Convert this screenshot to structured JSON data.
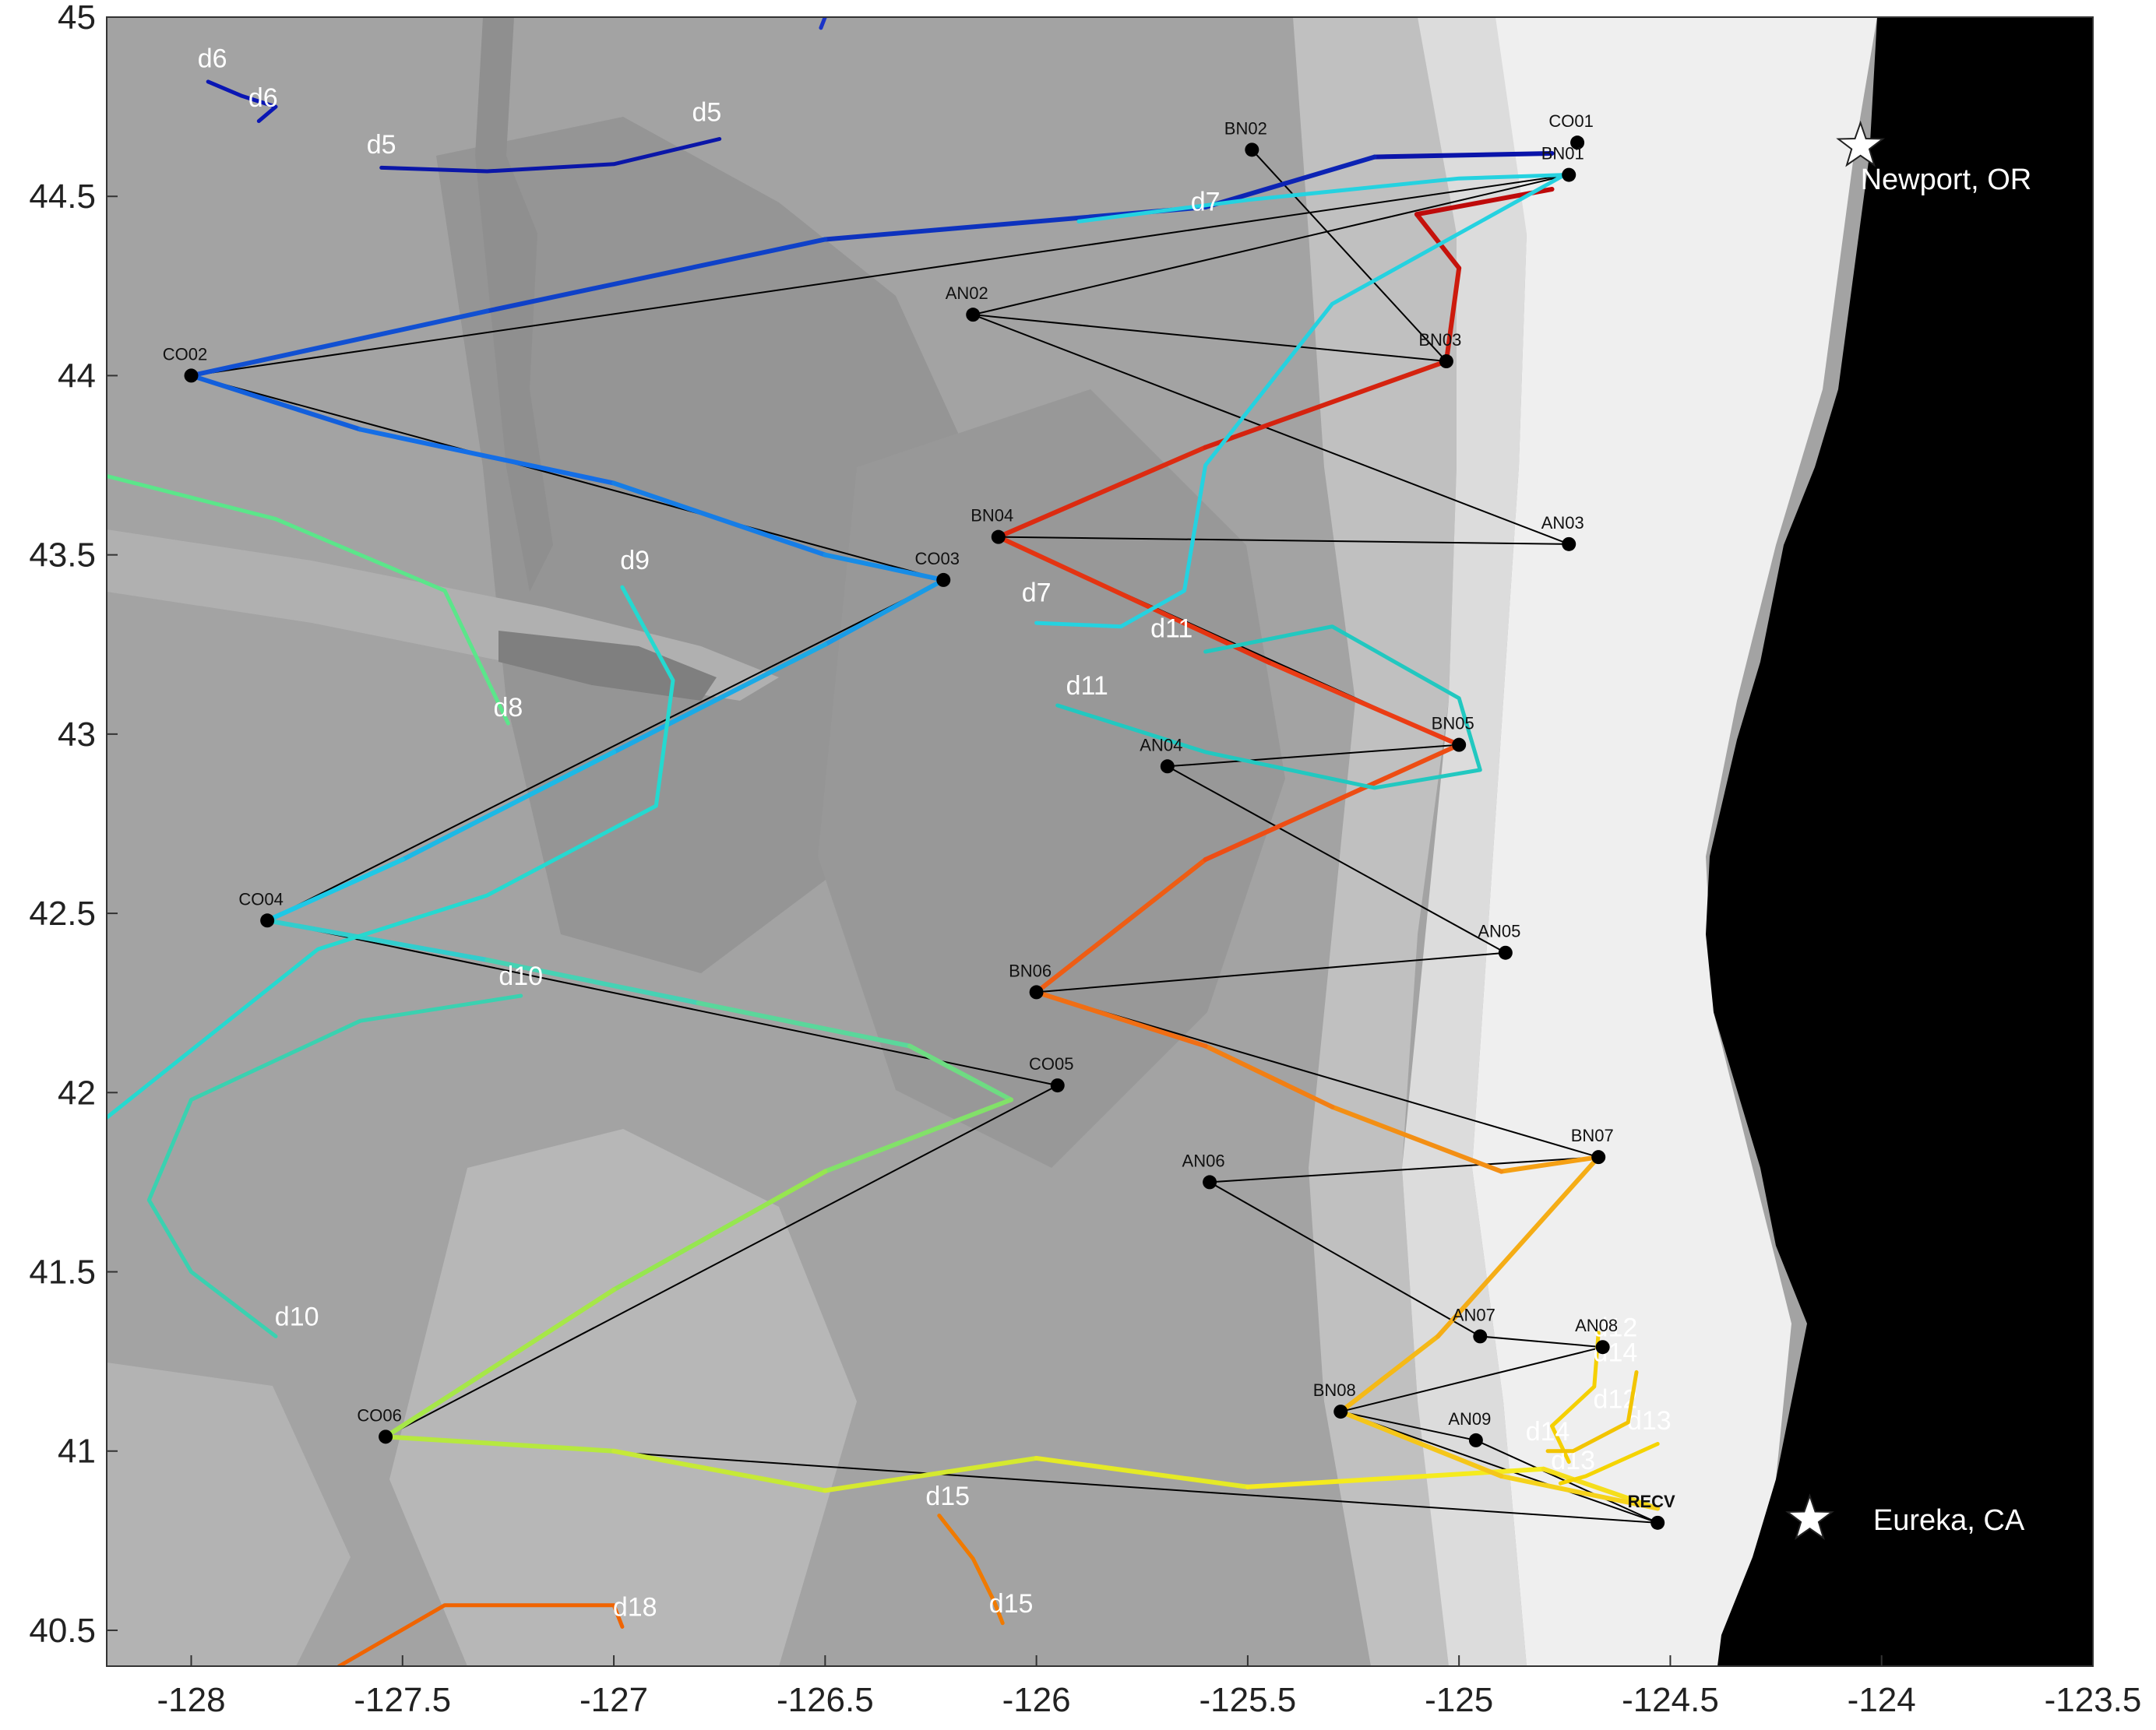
{
  "colors": {
    "ocean_deep": "#9e9e9e",
    "ocean_mid": "#aaaaaa",
    "ocean_slope": "#c2c2c2",
    "ocean_shelf": "#e0e0e0",
    "ocean_nearshore": "#f0f0f0",
    "land": "#000000",
    "ship_track": "#000000"
  },
  "chart_data": {
    "type": "map",
    "xlim": [
      -128.2,
      -123.5
    ],
    "ylim": [
      40.4,
      45
    ],
    "x_ticks": [
      {
        "value": -128,
        "label": "-128"
      },
      {
        "value": -127.5,
        "label": "-127.5"
      },
      {
        "value": -127,
        "label": "-127"
      },
      {
        "value": -126.5,
        "label": "-126.5"
      },
      {
        "value": -126,
        "label": "-126"
      },
      {
        "value": -125.5,
        "label": "-125.5"
      },
      {
        "value": -125,
        "label": "-125"
      },
      {
        "value": -124.5,
        "label": "-124.5"
      },
      {
        "value": -124,
        "label": "-124"
      },
      {
        "value": -123.5,
        "label": "-123.5"
      }
    ],
    "y_ticks": [
      {
        "value": 45,
        "label": "45"
      },
      {
        "value": 44.5,
        "label": "44.5"
      },
      {
        "value": 44,
        "label": "44"
      },
      {
        "value": 43.5,
        "label": "43.5"
      },
      {
        "value": 43,
        "label": "43"
      },
      {
        "value": 42.5,
        "label": "42.5"
      },
      {
        "value": 42,
        "label": "42"
      },
      {
        "value": 41.5,
        "label": "41.5"
      },
      {
        "value": 41,
        "label": "41"
      },
      {
        "value": 40.5,
        "label": "40.5"
      }
    ],
    "grid": false,
    "stations": [
      {
        "name": "CO01",
        "lon": -124.72,
        "lat": 44.65
      },
      {
        "name": "BN01",
        "lon": -124.74,
        "lat": 44.56
      },
      {
        "name": "BN02",
        "lon": -125.49,
        "lat": 44.63
      },
      {
        "name": "CO02",
        "lon": -128.0,
        "lat": 44.0
      },
      {
        "name": "AN02",
        "lon": -126.15,
        "lat": 44.17
      },
      {
        "name": "BN03",
        "lon": -125.03,
        "lat": 44.04
      },
      {
        "name": "AN03",
        "lon": -124.74,
        "lat": 43.53
      },
      {
        "name": "BN04",
        "lon": -126.09,
        "lat": 43.55
      },
      {
        "name": "CO03",
        "lon": -126.22,
        "lat": 43.43
      },
      {
        "name": "BN05",
        "lon": -125.0,
        "lat": 42.97
      },
      {
        "name": "AN04",
        "lon": -125.69,
        "lat": 42.91
      },
      {
        "name": "CO04",
        "lon": -127.82,
        "lat": 42.48
      },
      {
        "name": "AN05",
        "lon": -124.89,
        "lat": 42.39
      },
      {
        "name": "BN06",
        "lon": -126.0,
        "lat": 42.28
      },
      {
        "name": "CO05",
        "lon": -125.95,
        "lat": 42.02
      },
      {
        "name": "BN07",
        "lon": -124.67,
        "lat": 41.82
      },
      {
        "name": "AN06",
        "lon": -125.59,
        "lat": 41.75
      },
      {
        "name": "AN07",
        "lon": -124.95,
        "lat": 41.32
      },
      {
        "name": "AN08",
        "lon": -124.66,
        "lat": 41.29
      },
      {
        "name": "BN08",
        "lon": -125.28,
        "lat": 41.11
      },
      {
        "name": "AN09",
        "lon": -124.96,
        "lat": 41.03
      },
      {
        "name": "CO06",
        "lon": -127.54,
        "lat": 41.04
      },
      {
        "name": "RECV",
        "lon": -124.53,
        "lat": 40.8
      }
    ],
    "ship_track_order": [
      "CO01",
      "BN01",
      "BN02",
      "BN03",
      "AN02",
      "AN03",
      "BN04",
      "BN05",
      "AN04",
      "AN05",
      "BN06",
      "BN07",
      "AN06",
      "AN07",
      "AN08",
      "BN08",
      "AN09",
      "RECV"
    ],
    "ship_track_order_2": [
      "BN01",
      "CO02",
      "CO03",
      "CO04",
      "CO05",
      "CO06",
      "RECV"
    ],
    "ship_track_segments": [
      [
        "BN01",
        "CO02"
      ],
      [
        "CO02",
        "CO03"
      ],
      [
        "CO03",
        "CO04"
      ],
      [
        "CO04",
        "CO05"
      ],
      [
        "CO05",
        "CO06"
      ],
      [
        "CO06",
        "RECV"
      ],
      [
        "BN02",
        "BN03"
      ],
      [
        "BN03",
        "AN02"
      ],
      [
        "AN02",
        "BN01"
      ],
      [
        "AN02",
        "AN03"
      ],
      [
        "AN03",
        "BN04"
      ],
      [
        "BN04",
        "BN05"
      ],
      [
        "BN05",
        "AN04"
      ],
      [
        "AN04",
        "AN05"
      ],
      [
        "AN05",
        "BN06"
      ],
      [
        "BN06",
        "BN07"
      ],
      [
        "BN07",
        "AN06"
      ],
      [
        "AN06",
        "AN07"
      ],
      [
        "AN07",
        "AN08"
      ],
      [
        "AN08",
        "BN08"
      ],
      [
        "BN08",
        "AN09"
      ],
      [
        "AN09",
        "RECV"
      ],
      [
        "BN08",
        "RECV"
      ]
    ],
    "glider_track": {
      "points": [
        [
          -124.78,
          44.62
        ],
        [
          -125.2,
          44.61
        ],
        [
          -125.6,
          44.47
        ],
        [
          -126.5,
          44.38
        ],
        [
          -127.3,
          44.18
        ],
        [
          -128.0,
          44.0
        ],
        [
          -127.6,
          43.85
        ],
        [
          -127.0,
          43.7
        ],
        [
          -126.5,
          43.5
        ],
        [
          -126.22,
          43.43
        ],
        [
          -126.5,
          43.25
        ],
        [
          -127.0,
          42.95
        ],
        [
          -127.5,
          42.65
        ],
        [
          -127.82,
          42.48
        ],
        [
          -127.3,
          42.37
        ],
        [
          -126.8,
          42.25
        ],
        [
          -126.3,
          42.13
        ],
        [
          -126.06,
          41.98
        ],
        [
          -126.5,
          41.78
        ],
        [
          -127.0,
          41.45
        ],
        [
          -127.54,
          41.04
        ],
        [
          -127.0,
          41.0
        ],
        [
          -126.5,
          40.89
        ],
        [
          -126.0,
          40.98
        ],
        [
          -125.5,
          40.9
        ],
        [
          -124.8,
          40.95
        ],
        [
          -124.53,
          40.84
        ],
        [
          -124.9,
          40.93
        ],
        [
          -125.28,
          41.11
        ],
        [
          -125.05,
          41.32
        ],
        [
          -124.67,
          41.82
        ],
        [
          -124.9,
          41.78
        ],
        [
          -125.3,
          41.96
        ],
        [
          -125.6,
          42.13
        ],
        [
          -126.0,
          42.28
        ],
        [
          -125.6,
          42.65
        ],
        [
          -125.0,
          42.97
        ],
        [
          -125.45,
          43.2
        ],
        [
          -126.09,
          43.55
        ],
        [
          -125.6,
          43.8
        ],
        [
          -125.03,
          44.04
        ],
        [
          -125.0,
          44.3
        ],
        [
          -125.1,
          44.45
        ],
        [
          -124.78,
          44.52
        ]
      ]
    },
    "drifters": [
      {
        "id": "d5",
        "labels": [
          [
            -126.78,
            44.71
          ],
          [
            -127.55,
            44.62
          ]
        ],
        "color": "#0a16a8",
        "path": [
          [
            -127.55,
            44.58
          ],
          [
            -127.3,
            44.57
          ],
          [
            -127.0,
            44.59
          ],
          [
            -126.75,
            44.66
          ]
        ]
      },
      {
        "id": "d6",
        "labels": [
          [
            -127.95,
            44.86
          ],
          [
            -127.83,
            44.75
          ]
        ],
        "color": "#0a16b4",
        "path": [
          [
            -127.96,
            44.82
          ],
          [
            -127.88,
            44.78
          ],
          [
            -127.8,
            44.75
          ],
          [
            -127.84,
            44.71
          ]
        ]
      },
      {
        "id": "d7",
        "labels": [
          [
            -125.6,
            44.46
          ],
          [
            -126.0,
            43.37
          ]
        ],
        "color": "#25d2e0",
        "path": [
          [
            -125.9,
            44.43
          ],
          [
            -125.5,
            44.49
          ],
          [
            -125.0,
            44.55
          ],
          [
            -124.75,
            44.56
          ],
          [
            -125.3,
            44.2
          ],
          [
            -125.6,
            43.75
          ],
          [
            -125.65,
            43.4
          ],
          [
            -125.8,
            43.3
          ],
          [
            -126.0,
            43.31
          ]
        ]
      },
      {
        "id": "d8",
        "labels": [
          [
            -127.25,
            43.05
          ]
        ],
        "color": "#5be68a",
        "path": [
          [
            -128.2,
            43.72
          ],
          [
            -127.8,
            43.6
          ],
          [
            -127.4,
            43.4
          ],
          [
            -127.25,
            43.03
          ]
        ]
      },
      {
        "id": "d9",
        "labels": [
          [
            -126.95,
            43.46
          ]
        ],
        "color": "#25d9d0",
        "path": [
          [
            -126.98,
            43.41
          ],
          [
            -126.86,
            43.15
          ],
          [
            -126.9,
            42.8
          ],
          [
            -127.3,
            42.55
          ],
          [
            -127.7,
            42.4
          ],
          [
            -128.2,
            41.93
          ]
        ]
      },
      {
        "id": "d10",
        "labels": [
          [
            -127.22,
            42.3
          ],
          [
            -127.75,
            41.35
          ]
        ],
        "color": "#3ad1b0",
        "path": [
          [
            -127.22,
            42.27
          ],
          [
            -127.6,
            42.2
          ],
          [
            -128.0,
            41.98
          ],
          [
            -128.1,
            41.7
          ],
          [
            -128.0,
            41.5
          ],
          [
            -127.8,
            41.32
          ]
        ]
      },
      {
        "id": "d11",
        "labels": [
          [
            -125.68,
            43.27
          ],
          [
            -125.88,
            43.11
          ]
        ],
        "color": "#22c8c0",
        "path": [
          [
            -125.95,
            43.08
          ],
          [
            -125.6,
            42.95
          ],
          [
            -125.2,
            42.85
          ],
          [
            -124.95,
            42.9
          ],
          [
            -125.0,
            43.1
          ],
          [
            -125.3,
            43.3
          ],
          [
            -125.6,
            43.23
          ]
        ]
      },
      {
        "id": "d12",
        "labels": [
          [
            -124.63,
            41.32
          ],
          [
            -124.63,
            41.12
          ]
        ],
        "color": "#f5d000",
        "path": [
          [
            -124.67,
            41.33
          ],
          [
            -124.68,
            41.18
          ],
          [
            -124.78,
            41.07
          ],
          [
            -124.74,
            40.97
          ]
        ]
      },
      {
        "id": "d13",
        "labels": [
          [
            -124.55,
            41.06
          ],
          [
            -124.73,
            40.95
          ]
        ],
        "color": "#f5d400",
        "path": [
          [
            -124.53,
            41.02
          ],
          [
            -124.7,
            40.93
          ],
          [
            -124.76,
            40.91
          ]
        ]
      },
      {
        "id": "d14",
        "labels": [
          [
            -124.63,
            41.25
          ],
          [
            -124.79,
            41.03
          ]
        ],
        "color": "#f2c400",
        "path": [
          [
            -124.58,
            41.22
          ],
          [
            -124.6,
            41.08
          ],
          [
            -124.73,
            41.0
          ],
          [
            -124.79,
            41.0
          ]
        ]
      },
      {
        "id": "d15",
        "labels": [
          [
            -126.21,
            40.85
          ],
          [
            -126.06,
            40.55
          ]
        ],
        "color": "#f07a00",
        "path": [
          [
            -126.23,
            40.82
          ],
          [
            -126.15,
            40.7
          ],
          [
            -126.1,
            40.58
          ],
          [
            -126.08,
            40.52
          ]
        ]
      },
      {
        "id": "d18",
        "labels": [
          [
            -126.95,
            40.54
          ]
        ],
        "color": "#f06400",
        "path": [
          [
            -127.65,
            40.4
          ],
          [
            -127.4,
            40.57
          ],
          [
            -127.0,
            40.57
          ],
          [
            -126.98,
            40.51
          ]
        ]
      },
      {
        "id": "d6",
        "labels": [
          [
            -126.51,
            45.01
          ]
        ],
        "color": "#1a34c8",
        "path": [
          [
            -126.5,
            45.0
          ],
          [
            -126.51,
            44.97
          ]
        ]
      }
    ],
    "cities": [
      {
        "name": "Newport, OR",
        "lon": -124.05,
        "lat": 44.64,
        "label_lon": -124.05,
        "label_lat": 44.52
      },
      {
        "name": "Eureka, CA",
        "lon": -124.17,
        "lat": 40.81,
        "label_lon": -124.02,
        "label_lat": 40.78
      }
    ]
  }
}
